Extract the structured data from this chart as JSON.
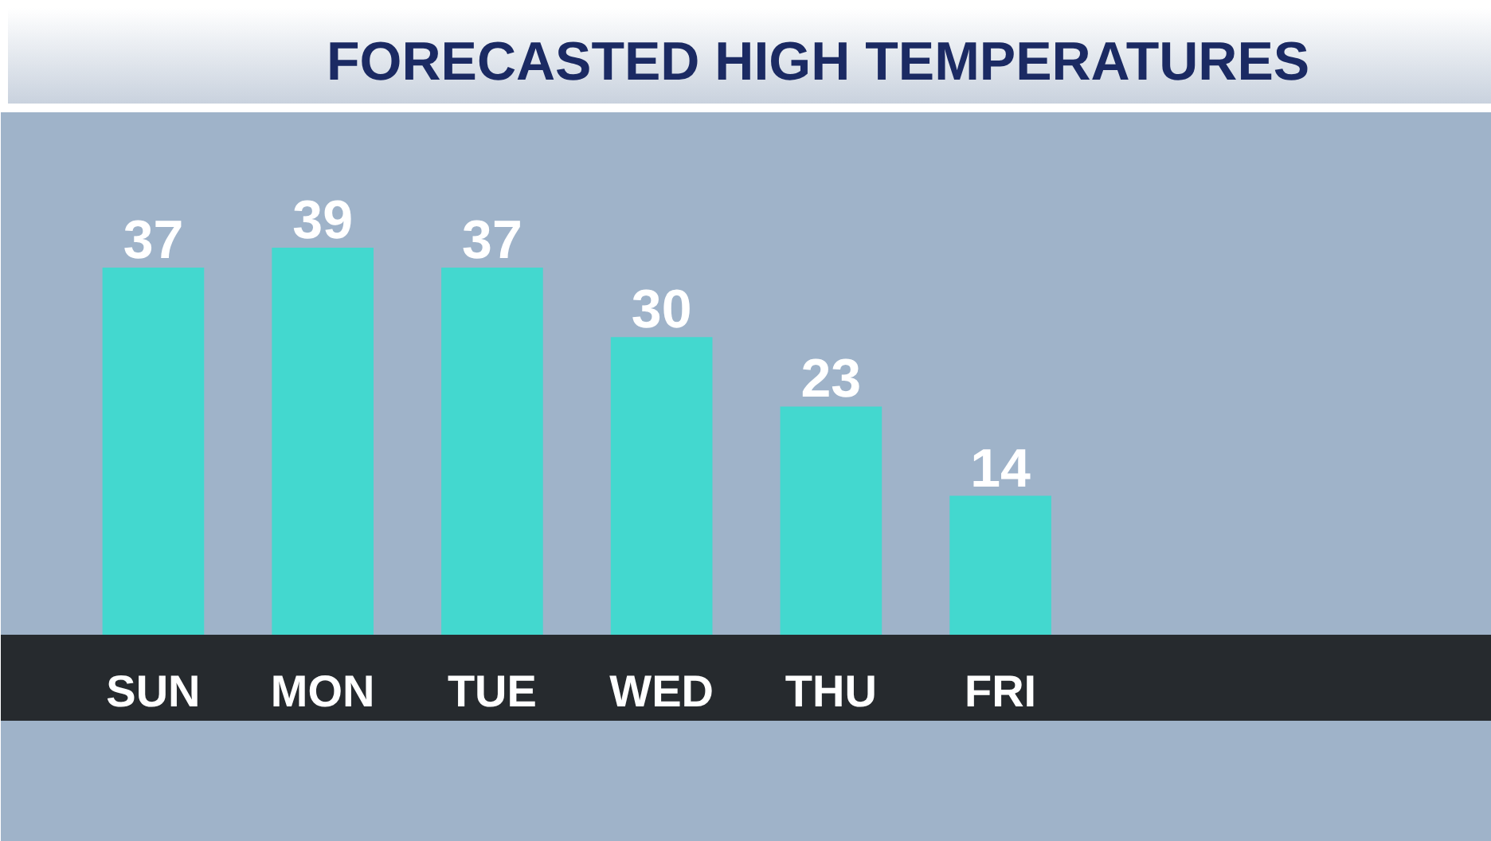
{
  "chart_data": {
    "type": "bar",
    "title": "FORECASTED HIGH TEMPERATURES",
    "categories": [
      "SUN",
      "MON",
      "TUE",
      "WED",
      "THU",
      "FRI"
    ],
    "values": [
      37,
      39,
      37,
      30,
      23,
      14
    ],
    "color": "#43d8cf",
    "data_labels": true,
    "tick_labels": "x"
  }
}
